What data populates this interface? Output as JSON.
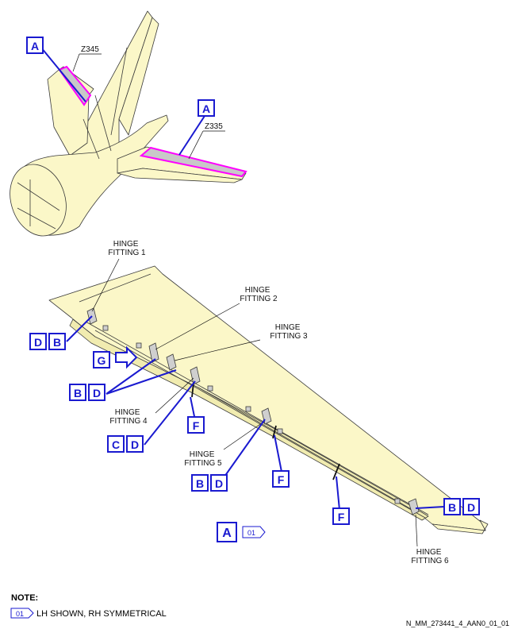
{
  "zones": {
    "fin": "Z345",
    "stabilizer": "Z335"
  },
  "hinge_fittings": {
    "f1": [
      "HINGE",
      "FITTING 1"
    ],
    "f2": [
      "HINGE",
      "FITTING 2"
    ],
    "f3": [
      "HINGE",
      "FITTING 3"
    ],
    "f4": [
      "HINGE",
      "FITTING 4"
    ],
    "f5": [
      "HINGE",
      "FITTING 5"
    ],
    "f6": [
      "HINGE",
      "FITTING 6"
    ]
  },
  "callouts": {
    "A": "A",
    "B": "B",
    "C": "C",
    "D": "D",
    "F": "F",
    "G": "G"
  },
  "view_label": {
    "letter": "A",
    "flag": "01"
  },
  "note": {
    "heading": "NOTE:",
    "flag": "01",
    "text": "LH SHOWN, RH SYMMETRICAL"
  },
  "reference": "N_MM_273441_4_AAN0_01_01",
  "colors": {
    "skin": "#fbf7c8",
    "outline": "#3a3a3a",
    "highlight": "#ff00ff",
    "zone_fill": "#c8c8c8",
    "callout_blue": "#1a1ad0"
  }
}
